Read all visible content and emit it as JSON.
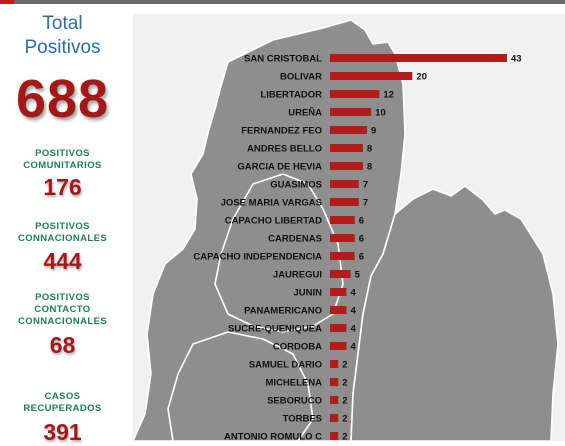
{
  "summary": {
    "total_label_line1": "Total",
    "total_label_line2": "Positivos",
    "total_value": "688",
    "stats": [
      {
        "label_lines": [
          "POSITIVOS",
          "COMUNITARIOS"
        ],
        "value": "176"
      },
      {
        "label_lines": [
          "POSITIVOS",
          "CONNACIONALES"
        ],
        "value": "444"
      },
      {
        "label_lines": [
          "POSITIVOS",
          "CONTACTO",
          "CONNACIONALES"
        ],
        "value": "68"
      },
      {
        "label_lines": [
          "CASOS",
          "RECUPERADOS"
        ],
        "value": "391"
      }
    ]
  },
  "colors": {
    "bar": "#b21c1c",
    "total_label": "#2a6ea8",
    "stat_label": "#1f7f55",
    "value": "#a41818",
    "map_fill": "#8e8e8e",
    "map_border": "#ffffff",
    "map_background": "#f1f1f1"
  },
  "chart_data": {
    "type": "bar",
    "orientation": "horizontal",
    "categories": [
      "SAN CRISTOBAL",
      "BOLIVAR",
      "LIBERTADOR",
      "UREÑA",
      "FERNANDEZ FEO",
      "ANDRES BELLO",
      "GARCIA DE HEVIA",
      "GUASIMOS",
      "JOSE MARIA VARGAS",
      "CAPACHO LIBERTAD",
      "CARDENAS",
      "CAPACHO INDEPENDENCIA",
      "JAUREGUI",
      "JUNIN",
      "PANAMERICANO",
      "SUCRE-QUENIQUEA",
      "CORDOBA",
      "SAMUEL DARIO",
      "MICHELENA",
      "SEBORUCO",
      "TORBES",
      "ANTONIO ROMULO C"
    ],
    "values": [
      43,
      20,
      12,
      10,
      9,
      8,
      8,
      7,
      7,
      6,
      6,
      6,
      5,
      4,
      4,
      4,
      4,
      2,
      2,
      2,
      2,
      2
    ],
    "xlim": [
      0,
      43
    ],
    "grid": false,
    "legend": "none",
    "background": "map of Táchira municipalities"
  }
}
